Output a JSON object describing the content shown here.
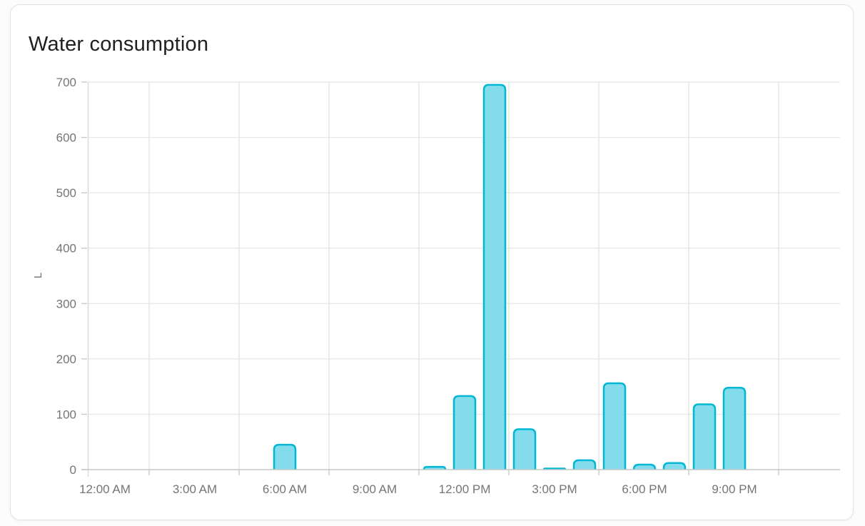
{
  "card": {
    "title": "Water consumption"
  },
  "chart_data": {
    "type": "bar",
    "title": "Water consumption",
    "xlabel": "",
    "ylabel": "L",
    "unit": "L",
    "ylim": [
      0,
      700
    ],
    "grid": true,
    "legend": false,
    "colors": {
      "bar_fill": "#82dcec",
      "bar_border": "#00b8d4",
      "h_gridline": "#e9e9e9",
      "v_gridline": "#e4e4e4",
      "axis_line": "#c6c6c6",
      "y_axis_line": "#d8d8d8",
      "tick_mark": "#cbcbcb",
      "tick_text": "#757575"
    },
    "y_tick_labels": [
      "0",
      "100",
      "200",
      "300",
      "400",
      "500",
      "600",
      "700"
    ],
    "x_tick_labels": [
      "12:00 AM",
      "3:00 AM",
      "6:00 AM",
      "9:00 AM",
      "12:00 PM",
      "3:00 PM",
      "6:00 PM",
      "9:00 PM"
    ],
    "categories": [
      "12 AM",
      "1 AM",
      "2 AM",
      "3 AM",
      "4 AM",
      "5 AM",
      "6 AM",
      "7 AM",
      "8 AM",
      "9 AM",
      "10 AM",
      "11 AM",
      "12 PM",
      "1 PM",
      "2 PM",
      "3 PM",
      "4 PM",
      "5 PM",
      "6 PM",
      "7 PM",
      "8 PM",
      "9 PM",
      "10 PM",
      "11 PM"
    ],
    "values": [
      0,
      0,
      0,
      0,
      0,
      0,
      45,
      0,
      0,
      0,
      0,
      5,
      133,
      695,
      73,
      2,
      17,
      156,
      9,
      12,
      118,
      148,
      0,
      0
    ]
  }
}
